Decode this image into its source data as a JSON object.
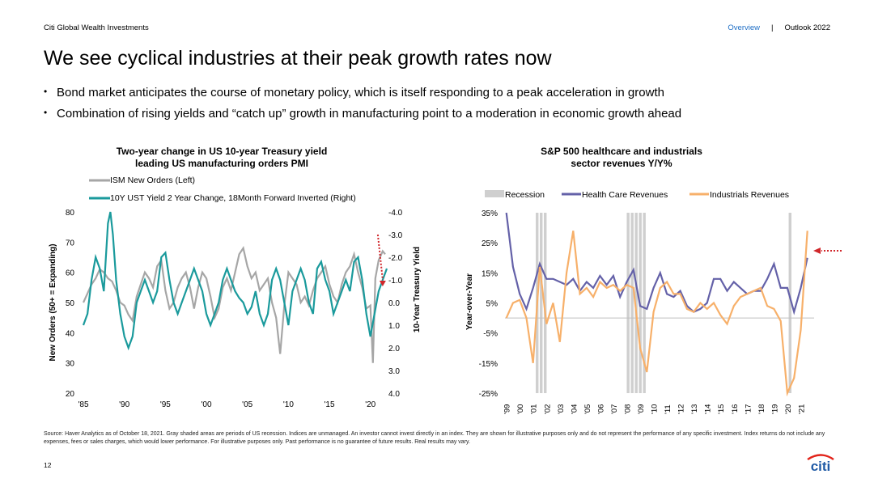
{
  "header": {
    "brand": "Citi Global Wealth Investments",
    "nav_overview": "Overview",
    "nav_sep": "|",
    "nav_outlook": "Outlook 2022"
  },
  "title": "We see cyclical industries at their peak growth rates now",
  "bullets": [
    "Bond market anticipates the course of monetary policy, which is itself responding to a peak acceleration in growth",
    "Combination of rising yields and “catch up” growth in manufacturing point to a moderation in economic growth ahead"
  ],
  "footnote": "Source: Haver Analytics as of October 18, 2021. Gray shaded areas are periods of US recession. Indices are unmanaged. An investor cannot invest directly in an index. They are shown for illustrative purposes only and do not represent the performance of any specific investment. Index returns do not include any expenses, fees or sales charges, which would lower performance. For illustrative purposes only. Past performance is no guarantee of future results. Real results may vary.",
  "page_number": "12",
  "logo_text": "citi",
  "colors": {
    "gray": "#a6a6a6",
    "teal": "#1a9a9c",
    "purple": "#6461a8",
    "orange": "#f7b06a",
    "recession": "#cfcfcf",
    "arrow": "#d0272b",
    "brand_blue": "#1f6fc6"
  },
  "chart_data": [
    {
      "type": "line",
      "title": "Two-year change in US 10-year Treasury yield leading US manufacturing orders PMI",
      "title_lines": [
        "Two-year change in US 10-year Treasury yield",
        "leading US manufacturing orders PMI"
      ],
      "ylabel": "New Orders (50+ = Expanding)",
      "y2label": "10-Year Treasury Yield",
      "ylim": [
        20,
        80
      ],
      "y2lim": [
        -4.0,
        4.0
      ],
      "y2_inverted": true,
      "xlim": [
        1985,
        2022
      ],
      "x_ticks": [
        "'85",
        "'90",
        "'95",
        "'00",
        "'05",
        "'10",
        "'15",
        "'20"
      ],
      "y_ticks": [
        "80",
        "70",
        "60",
        "50",
        "40",
        "30",
        "20"
      ],
      "y2_ticks": [
        "-4.0",
        "-3.0",
        "-2.0",
        "-1.0",
        "0.0",
        "1.0",
        "2.0",
        "3.0",
        "4.0"
      ],
      "series": [
        {
          "name": "ISM New Orders (Left)",
          "axis": "left",
          "x": [
            1985.0,
            1985.5,
            1986.0,
            1986.5,
            1987.0,
            1987.5,
            1988.0,
            1988.5,
            1989.0,
            1989.5,
            1990.0,
            1990.5,
            1991.0,
            1991.5,
            1992.0,
            1992.5,
            1993.0,
            1993.5,
            1994.0,
            1994.5,
            1995.0,
            1995.5,
            1996.0,
            1996.5,
            1997.0,
            1997.5,
            1998.0,
            1998.5,
            1999.0,
            1999.5,
            2000.0,
            2000.5,
            2001.0,
            2001.5,
            2002.0,
            2002.5,
            2003.0,
            2003.5,
            2004.0,
            2004.5,
            2005.0,
            2005.5,
            2006.0,
            2006.5,
            2007.0,
            2007.5,
            2008.0,
            2008.5,
            2009.0,
            2009.5,
            2010.0,
            2010.5,
            2011.0,
            2011.5,
            2012.0,
            2012.5,
            2013.0,
            2013.5,
            2014.0,
            2014.5,
            2015.0,
            2015.5,
            2016.0,
            2016.5,
            2017.0,
            2017.5,
            2018.0,
            2018.5,
            2019.0,
            2019.5,
            2020.0,
            2020.3,
            2020.6,
            2021.0,
            2021.5,
            2021.8
          ],
          "values": [
            50,
            53,
            56,
            58,
            61,
            60,
            58,
            57,
            54,
            50,
            49,
            46,
            44,
            52,
            56,
            60,
            58,
            55,
            62,
            64,
            54,
            48,
            50,
            55,
            58,
            60,
            55,
            48,
            55,
            60,
            58,
            52,
            45,
            48,
            55,
            58,
            54,
            60,
            66,
            68,
            62,
            58,
            60,
            54,
            56,
            58,
            50,
            45,
            33,
            49,
            60,
            58,
            56,
            50,
            52,
            49,
            54,
            58,
            60,
            62,
            56,
            52,
            50,
            56,
            60,
            62,
            66,
            60,
            55,
            48,
            49,
            30,
            58,
            64,
            67,
            66
          ]
        },
        {
          "name": "10Y UST Yield 2 Year Change, 18Month Forward Inverted (Right)",
          "axis": "right",
          "x": [
            1985.0,
            1985.5,
            1986.0,
            1986.5,
            1987.0,
            1987.5,
            1988.0,
            1988.3,
            1988.6,
            1989.0,
            1989.5,
            1990.0,
            1990.5,
            1991.0,
            1991.5,
            1992.0,
            1992.5,
            1993.0,
            1993.5,
            1994.0,
            1994.5,
            1995.0,
            1995.5,
            1996.0,
            1996.5,
            1997.0,
            1997.5,
            1998.0,
            1998.5,
            1999.0,
            1999.5,
            2000.0,
            2000.5,
            2001.0,
            2001.5,
            2002.0,
            2002.5,
            2003.0,
            2003.5,
            2004.0,
            2004.5,
            2005.0,
            2005.5,
            2006.0,
            2006.5,
            2007.0,
            2007.5,
            2008.0,
            2008.5,
            2009.0,
            2009.5,
            2010.0,
            2010.5,
            2011.0,
            2011.5,
            2012.0,
            2012.5,
            2013.0,
            2013.5,
            2014.0,
            2014.5,
            2015.0,
            2015.5,
            2016.0,
            2016.5,
            2017.0,
            2017.5,
            2018.0,
            2018.5,
            2019.0,
            2019.5,
            2020.0,
            2020.5,
            2021.0,
            2021.5,
            2022.0
          ],
          "values": [
            1.0,
            0.5,
            -1.0,
            -2.0,
            -1.5,
            -0.5,
            -3.5,
            -4.0,
            -3.0,
            -1.0,
            0.5,
            1.5,
            2.0,
            1.5,
            0.0,
            -0.5,
            -1.0,
            -0.5,
            0.0,
            -0.5,
            -2.0,
            -2.2,
            -1.0,
            0.0,
            0.5,
            0.0,
            -0.5,
            -1.0,
            -1.5,
            -1.0,
            -0.5,
            0.5,
            1.0,
            0.5,
            0.0,
            -1.0,
            -1.5,
            -1.0,
            -0.5,
            -0.2,
            0.0,
            0.5,
            0.2,
            -0.5,
            0.5,
            1.0,
            0.5,
            -1.0,
            -1.5,
            -1.0,
            0.0,
            1.0,
            -0.5,
            -1.0,
            -1.5,
            -1.0,
            0.0,
            0.5,
            -1.5,
            -1.8,
            -1.0,
            -0.5,
            0.5,
            0.0,
            -0.5,
            -1.0,
            -0.5,
            -1.8,
            -2.0,
            -1.0,
            0.5,
            1.5,
            0.5,
            -0.5,
            -1.0,
            -1.5
          ]
        }
      ],
      "annotation": "red dotted arrow pointing down at latest reading"
    },
    {
      "type": "line",
      "title": "S&P 500 healthcare and industrials sector revenues Y/Y%",
      "title_lines": [
        "S&P 500 healthcare and industrials",
        "sector revenues Y/Y%"
      ],
      "ylabel": "Year-over-Year",
      "ylim": [
        -25,
        35
      ],
      "y_ticks": [
        "35%",
        "25%",
        "15%",
        "5%",
        "-5%",
        "-15%",
        "-25%"
      ],
      "x_ticks": [
        "'99",
        "'00",
        "'01",
        "'02",
        "'03",
        "'04",
        "'05",
        "'06",
        "'07",
        "'08",
        "'09",
        "'10",
        "'11",
        "'12",
        "'13",
        "'14",
        "'15",
        "'16",
        "'17",
        "'18",
        "'19",
        "'20",
        "'21"
      ],
      "recessions": [
        [
          2001.2,
          2001.9
        ],
        [
          2008.0,
          2009.4
        ],
        [
          2020.1,
          2020.4
        ]
      ],
      "legend": [
        "Recession",
        "Health Care Revenues",
        "Industrials Revenues"
      ],
      "series": [
        {
          "name": "Health Care Revenues",
          "x": [
            1999.0,
            1999.5,
            2000.0,
            2000.5,
            2001.0,
            2001.5,
            2002.0,
            2002.5,
            2003.0,
            2003.5,
            2004.0,
            2004.5,
            2005.0,
            2005.5,
            2006.0,
            2006.5,
            2007.0,
            2007.5,
            2008.0,
            2008.5,
            2009.0,
            2009.5,
            2010.0,
            2010.5,
            2011.0,
            2011.5,
            2012.0,
            2012.5,
            2013.0,
            2013.5,
            2014.0,
            2014.5,
            2015.0,
            2015.5,
            2016.0,
            2016.5,
            2017.0,
            2017.5,
            2018.0,
            2018.5,
            2019.0,
            2019.5,
            2020.0,
            2020.5,
            2021.0,
            2021.5
          ],
          "values": [
            38,
            17,
            8,
            3,
            10,
            18,
            13,
            13,
            12,
            11,
            13,
            9,
            12,
            10,
            14,
            11,
            14,
            7,
            12,
            16,
            4,
            3,
            10,
            15,
            8,
            7,
            9,
            4,
            2,
            3,
            5,
            13,
            13,
            9,
            12,
            10,
            8,
            9,
            9,
            13,
            18,
            10,
            10,
            2,
            10,
            20
          ]
        },
        {
          "name": "Industrials Revenues",
          "x": [
            1999.0,
            1999.5,
            2000.0,
            2000.5,
            2001.0,
            2001.5,
            2002.0,
            2002.5,
            2003.0,
            2003.5,
            2004.0,
            2004.5,
            2005.0,
            2005.5,
            2006.0,
            2006.5,
            2007.0,
            2007.5,
            2008.0,
            2008.5,
            2009.0,
            2009.5,
            2010.0,
            2010.5,
            2011.0,
            2011.5,
            2012.0,
            2012.5,
            2013.0,
            2013.5,
            2014.0,
            2014.5,
            2015.0,
            2015.5,
            2016.0,
            2016.5,
            2017.0,
            2017.5,
            2018.0,
            2018.5,
            2019.0,
            2019.5,
            2020.0,
            2020.5,
            2021.0,
            2021.5
          ],
          "values": [
            0,
            5,
            6,
            0,
            -15,
            17,
            -2,
            5,
            -8,
            15,
            29,
            8,
            10,
            7,
            12,
            10,
            11,
            9,
            11,
            10,
            -10,
            -18,
            2,
            10,
            12,
            8,
            8,
            3,
            2,
            5,
            3,
            5,
            1,
            -2,
            4,
            7,
            8,
            9,
            10,
            4,
            3,
            -1,
            -25,
            -20,
            -4,
            29
          ]
        }
      ],
      "annotation": "red dotted arrow pointing left at latest readings"
    }
  ]
}
